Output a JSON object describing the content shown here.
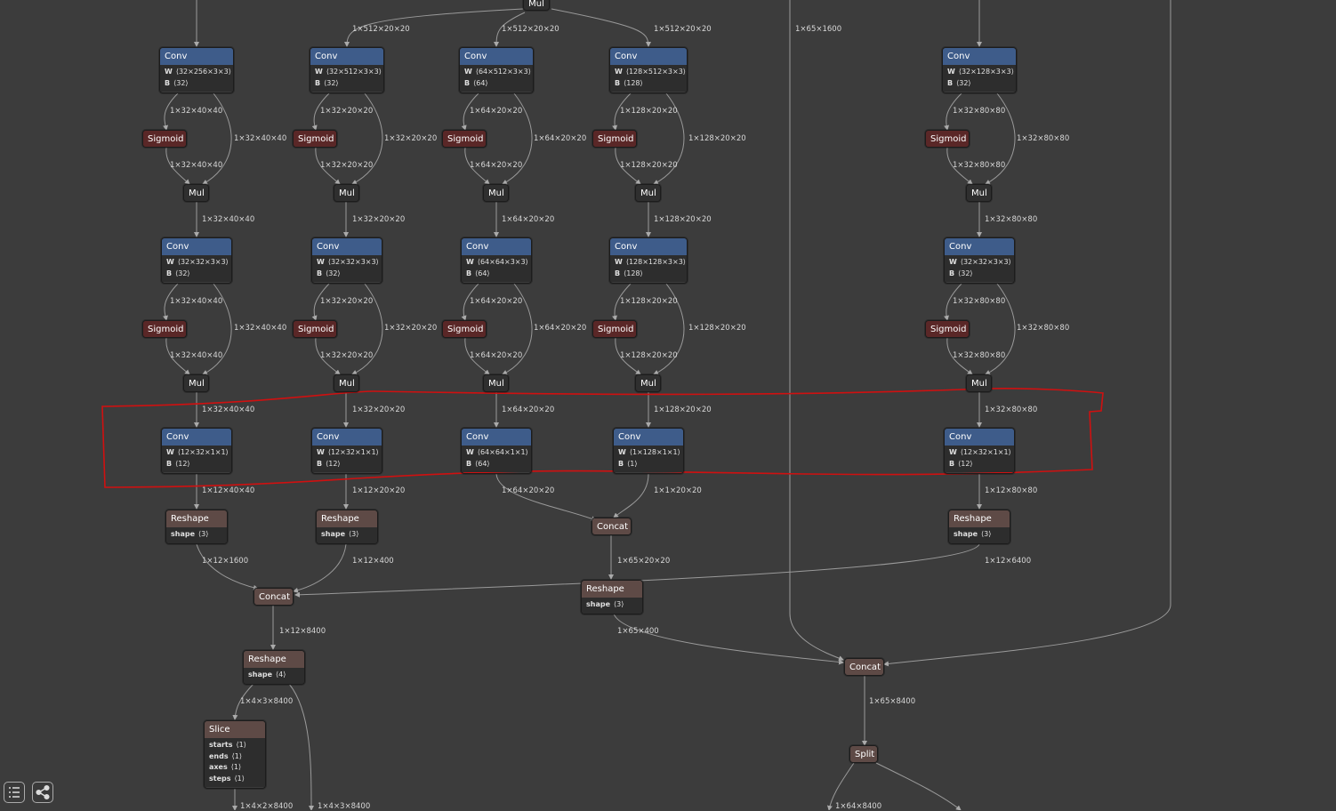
{
  "nodes": {
    "mul_top": {
      "op": "Mul"
    },
    "c1a": {
      "op": "Conv",
      "W": "⟨32×256×3×3⟩",
      "B": "⟨32⟩"
    },
    "c2a": {
      "op": "Conv",
      "W": "⟨32×512×3×3⟩",
      "B": "⟨32⟩"
    },
    "c3a": {
      "op": "Conv",
      "W": "⟨64×512×3×3⟩",
      "B": "⟨64⟩"
    },
    "c4a": {
      "op": "Conv",
      "W": "⟨128×512×3×3⟩",
      "B": "⟨128⟩"
    },
    "c5a": {
      "op": "Conv",
      "W": "⟨32×128×3×3⟩",
      "B": "⟨32⟩"
    },
    "s1a": {
      "op": "Sigmoid"
    },
    "s2a": {
      "op": "Sigmoid"
    },
    "s3a": {
      "op": "Sigmoid"
    },
    "s4a": {
      "op": "Sigmoid"
    },
    "s5a": {
      "op": "Sigmoid"
    },
    "m1a": {
      "op": "Mul"
    },
    "m2a": {
      "op": "Mul"
    },
    "m3a": {
      "op": "Mul"
    },
    "m4a": {
      "op": "Mul"
    },
    "m5a": {
      "op": "Mul"
    },
    "c1b": {
      "op": "Conv",
      "W": "⟨32×32×3×3⟩",
      "B": "⟨32⟩"
    },
    "c2b": {
      "op": "Conv",
      "W": "⟨32×32×3×3⟩",
      "B": "⟨32⟩"
    },
    "c3b": {
      "op": "Conv",
      "W": "⟨64×64×3×3⟩",
      "B": "⟨64⟩"
    },
    "c4b": {
      "op": "Conv",
      "W": "⟨128×128×3×3⟩",
      "B": "⟨128⟩"
    },
    "c5b": {
      "op": "Conv",
      "W": "⟨32×32×3×3⟩",
      "B": "⟨32⟩"
    },
    "s1b": {
      "op": "Sigmoid"
    },
    "s2b": {
      "op": "Sigmoid"
    },
    "s3b": {
      "op": "Sigmoid"
    },
    "s4b": {
      "op": "Sigmoid"
    },
    "s5b": {
      "op": "Sigmoid"
    },
    "m1b": {
      "op": "Mul"
    },
    "m2b": {
      "op": "Mul"
    },
    "m3b": {
      "op": "Mul"
    },
    "m4b": {
      "op": "Mul"
    },
    "m5b": {
      "op": "Mul"
    },
    "c1c": {
      "op": "Conv",
      "W": "⟨12×32×1×1⟩",
      "B": "⟨12⟩"
    },
    "c2c": {
      "op": "Conv",
      "W": "⟨12×32×1×1⟩",
      "B": "⟨12⟩"
    },
    "c3c": {
      "op": "Conv",
      "W": "⟨64×64×1×1⟩",
      "B": "⟨64⟩"
    },
    "c4c": {
      "op": "Conv",
      "W": "⟨1×128×1×1⟩",
      "B": "⟨1⟩"
    },
    "c5c": {
      "op": "Conv",
      "W": "⟨12×32×1×1⟩",
      "B": "⟨12⟩"
    },
    "r1": {
      "op": "Reshape",
      "shape": "⟨3⟩"
    },
    "r2": {
      "op": "Reshape",
      "shape": "⟨3⟩"
    },
    "r5": {
      "op": "Reshape",
      "shape": "⟨3⟩"
    },
    "cc34": {
      "op": "Concat"
    },
    "ccL": {
      "op": "Concat"
    },
    "rM": {
      "op": "Reshape",
      "shape": "⟨3⟩"
    },
    "rL": {
      "op": "Reshape",
      "shape": "⟨4⟩"
    },
    "ccR": {
      "op": "Concat"
    },
    "slice": {
      "op": "Slice",
      "starts": "⟨1⟩",
      "ends": "⟨1⟩",
      "axes": "⟨1⟩",
      "steps": "⟨1⟩"
    },
    "split": {
      "op": "Split"
    }
  },
  "edge_labels": {
    "e_top1": "1×512×20×20",
    "e_top2": "1×512×20×20",
    "e_top3": "1×512×20×20",
    "e_far": "1×65×1600",
    "e1_cs": "1×32×40×40",
    "e1_cm": "1×32×40×40",
    "e1_sm": "1×32×40×40",
    "e1_mc": "1×32×40×40",
    "e1_cs2": "1×32×40×40",
    "e1_cm2": "1×32×40×40",
    "e1_sm2": "1×32×40×40",
    "e1_mc2": "1×32×40×40",
    "e2_cs": "1×32×20×20",
    "e2_cm": "1×32×20×20",
    "e2_sm": "1×32×20×20",
    "e2_mc": "1×32×20×20",
    "e2_cs2": "1×32×20×20",
    "e2_cm2": "1×32×20×20",
    "e2_sm2": "1×32×20×20",
    "e2_mc2": "1×32×20×20",
    "e3_cs": "1×64×20×20",
    "e3_cm": "1×64×20×20",
    "e3_sm": "1×64×20×20",
    "e3_mc": "1×64×20×20",
    "e3_cs2": "1×64×20×20",
    "e3_cm2": "1×64×20×20",
    "e3_sm2": "1×64×20×20",
    "e3_mc2": "1×64×20×20",
    "e4_cs": "1×128×20×20",
    "e4_cm": "1×128×20×20",
    "e4_sm": "1×128×20×20",
    "e4_mc": "1×128×20×20",
    "e4_cs2": "1×128×20×20",
    "e4_cm2": "1×128×20×20",
    "e4_sm2": "1×128×20×20",
    "e4_mc2": "1×128×20×20",
    "e5_cs": "1×32×80×80",
    "e5_cm": "1×32×80×80",
    "e5_sm": "1×32×80×80",
    "e5_mc": "1×32×80×80",
    "e5_cs2": "1×32×80×80",
    "e5_cm2": "1×32×80×80",
    "e5_sm2": "1×32×80×80",
    "e5_mc2": "1×32×80×80",
    "e1_out": "1×12×40×40",
    "e2_out": "1×12×20×20",
    "e3_out": "1×64×20×20",
    "e4_out": "1×1×20×20",
    "e5_out": "1×12×80×80",
    "e_r1": "1×12×1600",
    "e_r2": "1×12×400",
    "e_r5": "1×12×6400",
    "e_cc34": "1×65×20×20",
    "e_ccL": "1×12×8400",
    "e_rM": "1×65×400",
    "e_rL1": "1×4×3×8400",
    "e_ccR": "1×65×8400",
    "e_sl": "1×4×2×8400",
    "e_rL2": "1×4×3×8400",
    "e_sp": "1×64×8400"
  },
  "toolbar": {
    "list_icon": "list-icon",
    "export_icon": "share-icon"
  },
  "colors": {
    "background": "#3c3c3c",
    "conv": "#3e5c8a",
    "sigmoid": "#5a2727",
    "layout": "#5e4a46",
    "edge": "#aaaaaa",
    "highlight": "#d01010"
  }
}
